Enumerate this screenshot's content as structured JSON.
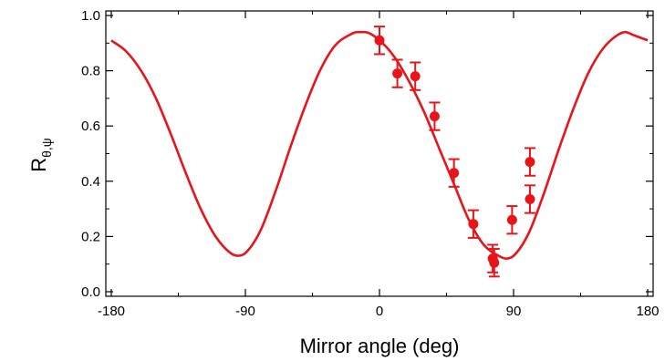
{
  "chart_data": {
    "type": "scatter",
    "title": "",
    "xlabel": "Mirror angle (deg)",
    "ylabel": {
      "main": "R",
      "subscript": "θ,ψ"
    },
    "xlim": [
      -180,
      180
    ],
    "ylim": [
      0.0,
      1.0
    ],
    "xticks": [
      -180,
      -90,
      0,
      90,
      180
    ],
    "xtick_labels": [
      "-180",
      "-90",
      "0",
      "90",
      "180"
    ],
    "yticks": [
      0.0,
      0.2,
      0.4,
      0.6,
      0.8,
      1.0
    ],
    "ytick_labels": [
      "0.0",
      "0.2",
      "0.4",
      "0.6",
      "0.8",
      "1.0"
    ],
    "grid": false,
    "color": "#e8141a",
    "series": [
      {
        "kind": "line",
        "x": [
          -180,
          -170,
          -160,
          -150,
          -140,
          -130,
          -120,
          -110,
          -100,
          -95,
          -90,
          -80,
          -70,
          -60,
          -50,
          -40,
          -30,
          -20,
          -15,
          -10,
          0,
          10,
          20,
          30,
          40,
          50,
          60,
          70,
          80,
          85,
          90,
          100,
          110,
          120,
          130,
          140,
          150,
          160,
          165,
          170,
          180
        ],
        "y": [
          0.91,
          0.87,
          0.8,
          0.7,
          0.57,
          0.43,
          0.3,
          0.2,
          0.14,
          0.13,
          0.14,
          0.22,
          0.36,
          0.52,
          0.67,
          0.8,
          0.89,
          0.93,
          0.94,
          0.94,
          0.91,
          0.85,
          0.76,
          0.65,
          0.52,
          0.39,
          0.26,
          0.17,
          0.13,
          0.12,
          0.13,
          0.21,
          0.35,
          0.51,
          0.66,
          0.79,
          0.88,
          0.93,
          0.94,
          0.93,
          0.91
        ]
      },
      {
        "kind": "points",
        "x": [
          0,
          12,
          24,
          37,
          50,
          63,
          76,
          77,
          89,
          101,
          101
        ],
        "y": [
          0.91,
          0.79,
          0.78,
          0.635,
          0.43,
          0.245,
          0.12,
          0.105,
          0.26,
          0.47,
          0.335
        ],
        "err": [
          0.05,
          0.05,
          0.05,
          0.05,
          0.05,
          0.05,
          0.05,
          0.05,
          0.05,
          0.05,
          0.05
        ]
      }
    ]
  }
}
